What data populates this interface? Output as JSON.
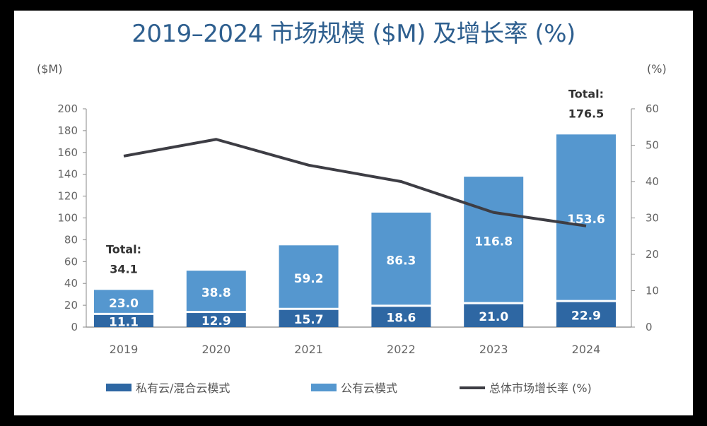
{
  "chart_data": {
    "type": "bar",
    "stacked": true,
    "title": "2019–2024 市场规模 ($M) 及增长率 (%)",
    "ylabel_left": "($M)",
    "ylabel_right": "(%)",
    "categories": [
      "2019",
      "2020",
      "2021",
      "2022",
      "2023",
      "2024"
    ],
    "ylim": [
      0,
      200
    ],
    "y_ticks": [
      0,
      20,
      40,
      60,
      80,
      100,
      120,
      140,
      160,
      180,
      200
    ],
    "y2lim": [
      0,
      60
    ],
    "y2_ticks": [
      0,
      10,
      20,
      30,
      40,
      50,
      60
    ],
    "grid": false,
    "legend_position": "bottom",
    "series": [
      {
        "name": "私有云/混合云模式",
        "type": "bar",
        "color": "#2e67a3",
        "values": [
          11.1,
          12.9,
          15.7,
          18.6,
          21.0,
          22.9
        ]
      },
      {
        "name": "公有云模式",
        "type": "bar",
        "color": "#5597cf",
        "values": [
          23.0,
          38.8,
          59.2,
          86.3,
          116.8,
          153.6
        ]
      },
      {
        "name": "总体市场增长率 (%)",
        "type": "line",
        "axis": "right",
        "color": "#3d3d44",
        "values": [
          47.0,
          51.6,
          44.5,
          40.0,
          31.5,
          27.8
        ]
      }
    ],
    "labels": [
      [
        "11.1",
        "12.9",
        "15.7",
        "18.6",
        "21.0",
        "22.9"
      ],
      [
        "23.0",
        "38.8",
        "59.2",
        "86.3",
        "116.8",
        "153.6"
      ]
    ],
    "annotations": [
      {
        "category": "2019",
        "line1": "Total:",
        "line2": "34.1",
        "value": 34.1
      },
      {
        "category": "2024",
        "line1": "Total:",
        "line2": "176.5",
        "value": 176.5
      }
    ]
  }
}
